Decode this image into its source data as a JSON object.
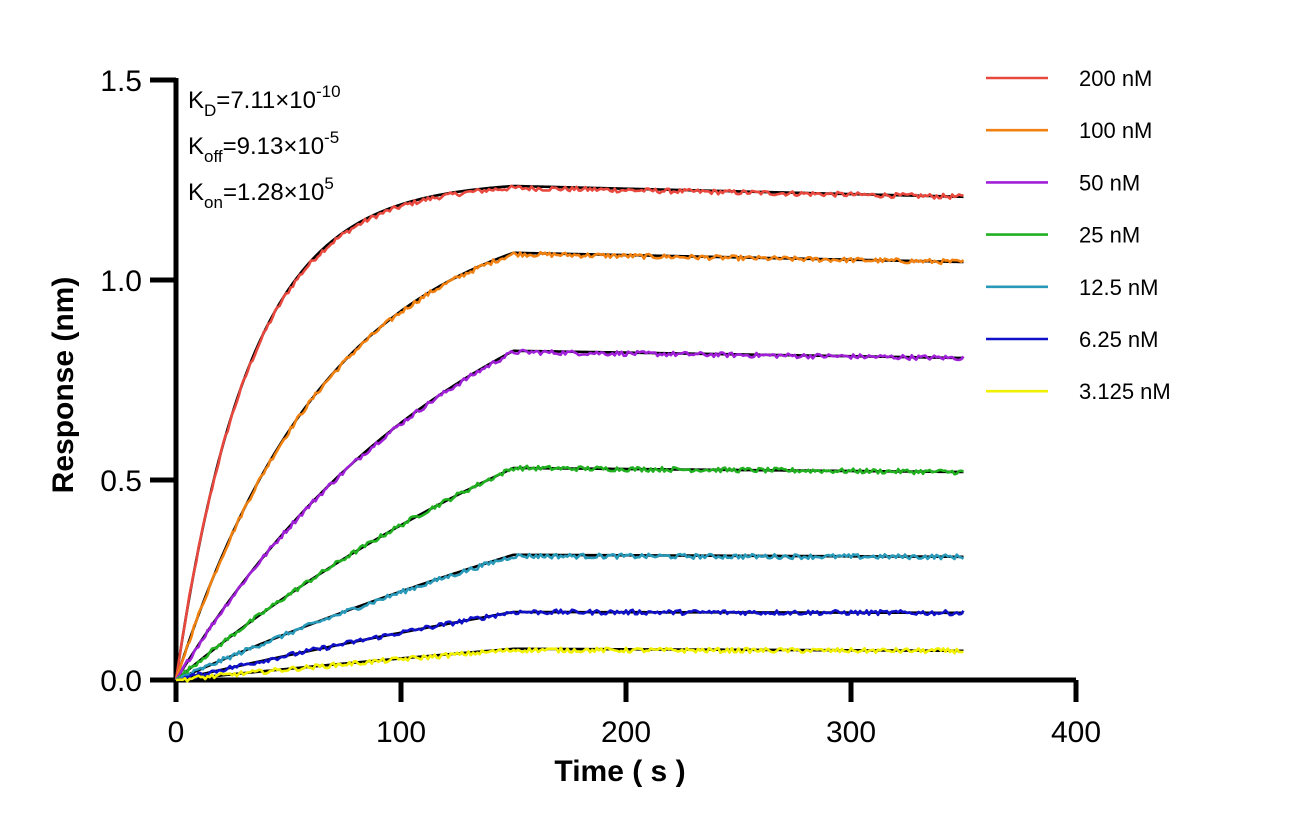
{
  "chart_data": {
    "type": "line",
    "xlabel": "Time ( s )",
    "ylabel": "Response (nm)",
    "xlim": [
      0,
      400
    ],
    "ylim": [
      0,
      1.5
    ],
    "x_ticks": [
      0,
      100,
      200,
      300,
      400
    ],
    "x_tick_labels": [
      "0",
      "100",
      "200",
      "300",
      "400"
    ],
    "y_ticks": [
      0,
      0.5,
      1.0,
      1.5
    ],
    "y_tick_labels": [
      "0.0",
      "0.5",
      "1.0",
      "1.5"
    ],
    "grid": false,
    "legend_position": "right",
    "association_end": 150,
    "time_end": 350,
    "annotations": [
      {
        "base": "K",
        "sub": "D",
        "eq": "=7.11×10",
        "exp": "-10"
      },
      {
        "base": "K",
        "sub": "off",
        "eq": "=9.13×10",
        "exp": "-5"
      },
      {
        "base": "K",
        "sub": "on",
        "eq": "=1.28×10",
        "exp": "5"
      }
    ],
    "fit_color": "#000000",
    "series": [
      {
        "name": "200 nM",
        "color": "#E8483D",
        "plateau": 1.23,
        "end": 1.208,
        "k": 0.0305,
        "fit_plateau": 1.235
      },
      {
        "name": "100 nM",
        "color": "#F08010",
        "plateau": 1.065,
        "end": 1.045,
        "k": 0.0145,
        "fit_plateau": 1.068
      },
      {
        "name": "50 nM",
        "color": "#A020D8",
        "plateau": 0.82,
        "end": 0.805,
        "k": 0.0075,
        "fit_plateau": 0.823
      },
      {
        "name": "25 nM",
        "color": "#20B020",
        "plateau": 0.53,
        "end": 0.52,
        "k": 0.004,
        "fit_plateau": 0.53
      },
      {
        "name": "12.5 nM",
        "color": "#2899B8",
        "plateau": 0.31,
        "end": 0.308,
        "k": 0.0025,
        "fit_plateau": 0.313
      },
      {
        "name": "6.25 nM",
        "color": "#1010C8",
        "plateau": 0.17,
        "end": 0.168,
        "k": 0.0018,
        "fit_plateau": 0.17
      },
      {
        "name": "3.125 nM",
        "color": "#F0F000",
        "plateau": 0.075,
        "end": 0.073,
        "k": 0.0015,
        "fit_plateau": 0.078
      }
    ]
  }
}
